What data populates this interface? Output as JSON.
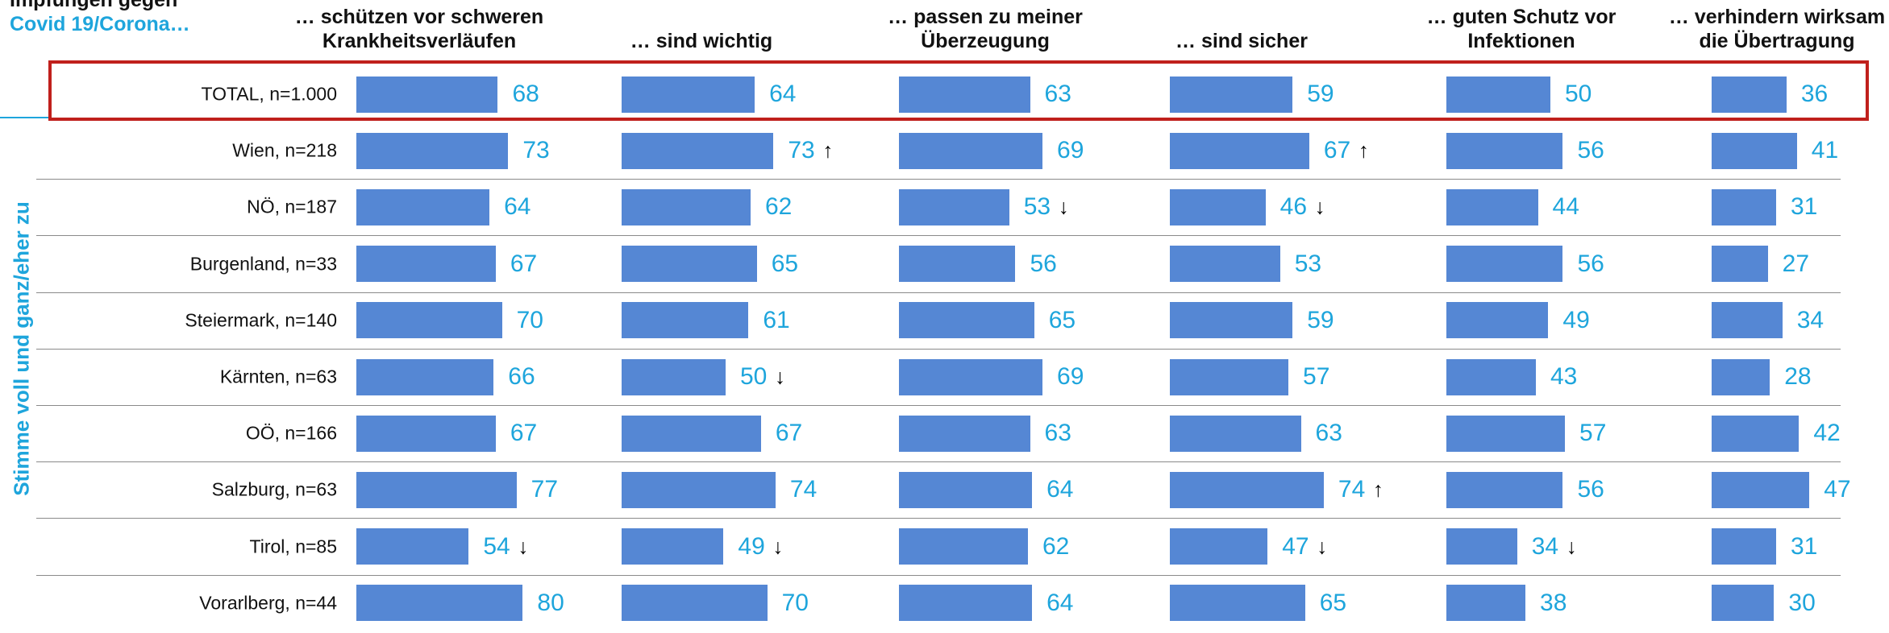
{
  "chart_data": {
    "type": "bar",
    "title": "Impfungen gegen",
    "subtitle": "Covid 19/Corona…",
    "y_label": "Stimme voll und ganz/eher zu",
    "color": "#5587d4",
    "categories": [
      "TOTAL, n=1.000",
      "Wien, n=218",
      "NÖ, n=187",
      "Burgenland, n=33",
      "Steiermark, n=140",
      "Kärnten, n=63",
      "OÖ, n=166",
      "Salzburg, n=63",
      "Tirol, n=85",
      "Vorarlberg, n=44"
    ],
    "series": [
      {
        "name": "… schützen vor schweren\nKrankheitsverläufen",
        "values": [
          68,
          73,
          64,
          67,
          70,
          66,
          67,
          77,
          54,
          80
        ],
        "markers": [
          null,
          null,
          null,
          null,
          null,
          null,
          null,
          null,
          "↓",
          null
        ]
      },
      {
        "name": "… sind wichtig",
        "values": [
          64,
          73,
          62,
          65,
          61,
          50,
          67,
          74,
          49,
          70
        ],
        "markers": [
          null,
          "↑",
          null,
          null,
          null,
          "↓",
          null,
          null,
          "↓",
          null
        ]
      },
      {
        "name": "… passen zu meiner\nÜberzeugung",
        "values": [
          63,
          69,
          53,
          56,
          65,
          69,
          63,
          64,
          62,
          64
        ],
        "markers": [
          null,
          null,
          "↓",
          null,
          null,
          null,
          null,
          null,
          null,
          null
        ]
      },
      {
        "name": "… sind sicher",
        "values": [
          59,
          67,
          46,
          53,
          59,
          57,
          63,
          74,
          47,
          65
        ],
        "markers": [
          null,
          "↑",
          "↓",
          null,
          null,
          null,
          null,
          "↑",
          "↓",
          null
        ]
      },
      {
        "name": "… guten Schutz vor\nInfektionen",
        "values": [
          50,
          56,
          44,
          56,
          49,
          43,
          57,
          56,
          34,
          38
        ],
        "markers": [
          null,
          null,
          null,
          null,
          null,
          null,
          null,
          null,
          "↓",
          null
        ]
      },
      {
        "name": "… verhindern wirksam\ndie Übertragung",
        "values": [
          36,
          41,
          31,
          27,
          34,
          28,
          42,
          47,
          31,
          30
        ],
        "markers": [
          null,
          null,
          null,
          null,
          null,
          null,
          null,
          null,
          null,
          null
        ]
      }
    ]
  }
}
